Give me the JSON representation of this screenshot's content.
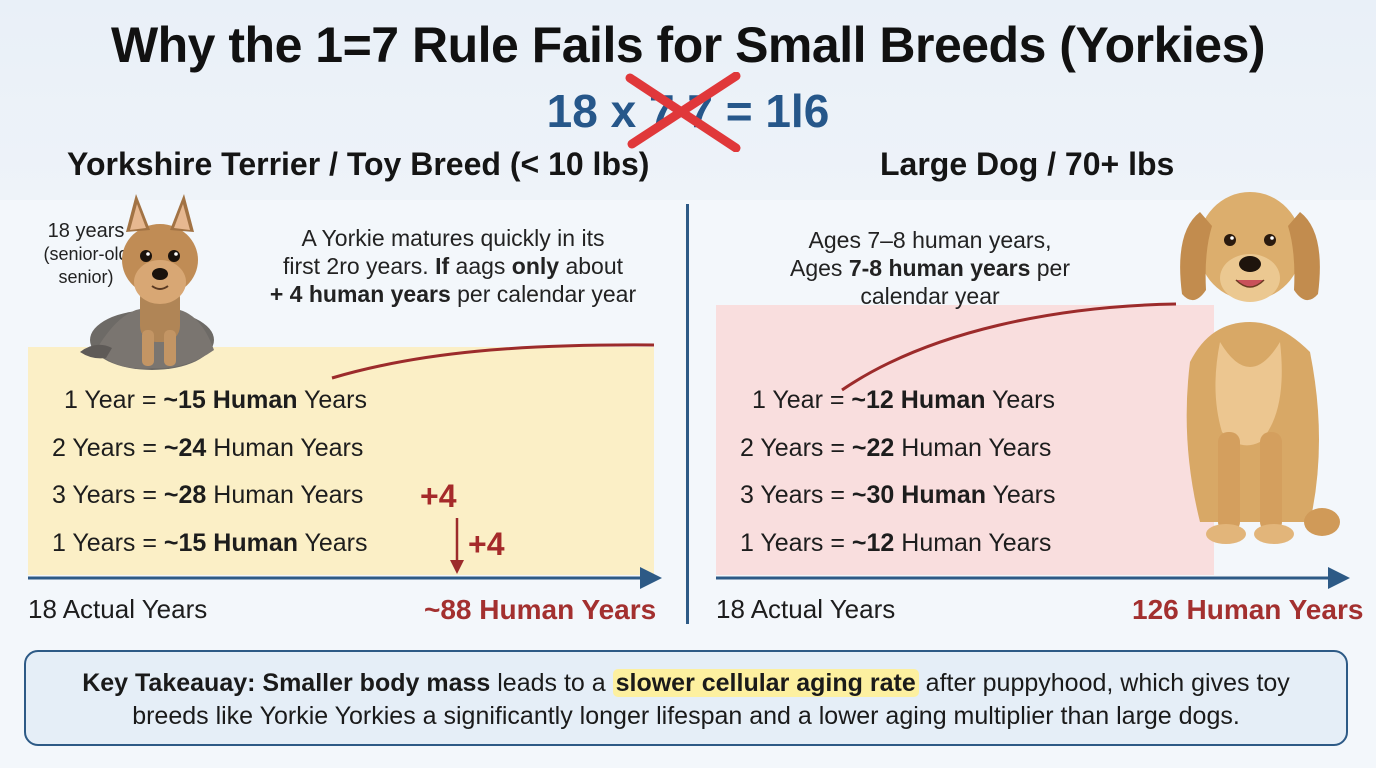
{
  "title": "Why the 1=7 Rule Fails for Small Breeds (Yorkies)",
  "formula": "18 x 7 7 = 1l6",
  "left": {
    "heading": "Yorkshire Terrier / Toy Breed (< 10 lbs)",
    "note": {
      "years": "18 years",
      "paren": "(senior-old",
      "end": "senior)"
    },
    "desc": {
      "line1": "A Yorkie matures quickly in its",
      "line2a": "first 2ro years. ",
      "line2b": "If",
      "line2c": " aags ",
      "line2d": "only",
      "line2e": " about",
      "line3a": "+ 4 human years",
      "line3b": " per calendar year"
    },
    "rows": [
      {
        "pre": "1 Year = ",
        "bold": "~15 Human",
        "post": " Years"
      },
      {
        "pre": "2 Years = ",
        "bold": "~24",
        "post": " Human Years"
      },
      {
        "pre": "3 Years = ",
        "bold": "~28",
        "post": " Human Years"
      },
      {
        "pre": "1 Years = ",
        "bold": "~15 Human",
        "post": " Years"
      }
    ],
    "plus1": "+4",
    "plus2": "+4",
    "actual": "18 Actual Years",
    "total": "~88 Human Years",
    "fill_color": "#fbefc6"
  },
  "right": {
    "heading": "Large Dog / 70+ lbs",
    "desc": {
      "line1": "Ages 7–8 human years,",
      "line2a": "Ages ",
      "line2b": "7-8 human years",
      "line2c": " per",
      "line3": "calendar year"
    },
    "rows": [
      {
        "pre": "1 Year = ",
        "bold": "~12 Human",
        "post": " Years"
      },
      {
        "pre": "2 Years = ",
        "bold": "~22",
        "post": " Human Years"
      },
      {
        "pre": "3 Years = ",
        "bold": "~30 Human",
        "post": " Years"
      },
      {
        "pre": "1 Years = ",
        "bold": "~12",
        "post": " Human Years"
      }
    ],
    "actual": "18 Actual Years",
    "total": "126 Human Years",
    "fill_color": "#f9dede"
  },
  "takeaway": {
    "label": "Key Takeauay:",
    "bold1": "Smaller body mass",
    "t1": " leads to a ",
    "highlight": "slower cellular aging rate",
    "t2": " after puppyhood, which gives toy",
    "line2": "breeds like Yorkie Yorkies a significantly longer lifespan and a lower aging multiplier than large dogs."
  },
  "colors": {
    "accent_blue": "#2d5a86",
    "accent_red": "#a3302f",
    "highlight": "#fdf0a0"
  }
}
